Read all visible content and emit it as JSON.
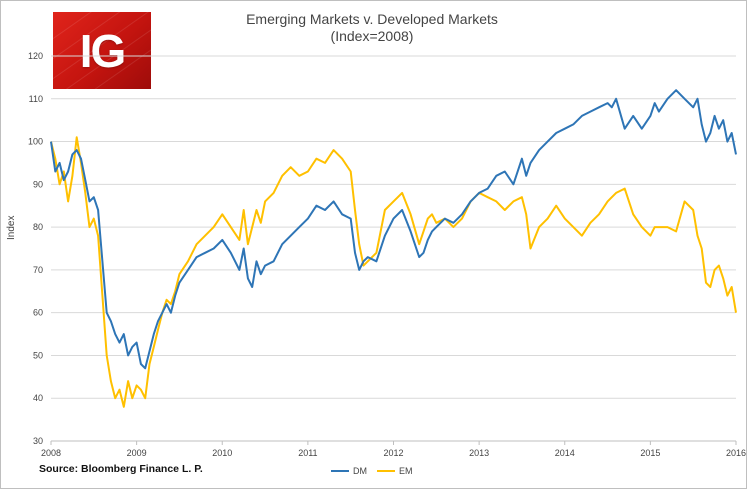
{
  "logo": {
    "text": "IG"
  },
  "colors": {
    "dm": "#2e75b6",
    "em": "#ffc000",
    "grid": "#d9d9d9",
    "axis": "#bfbfbf"
  },
  "source_text": "Source: Bloomberg Finance L. P.",
  "chart_data": {
    "type": "line",
    "title": "Emerging Markets v. Developed Markets",
    "subtitle": "(Index=2008)",
    "xlabel": "",
    "ylabel": "Index",
    "xlim": [
      2008,
      2016
    ],
    "ylim": [
      30,
      120
    ],
    "y_ticks": [
      30,
      40,
      50,
      60,
      70,
      80,
      90,
      100,
      110,
      120
    ],
    "x_ticks": [
      2008,
      2009,
      2010,
      2011,
      2012,
      2013,
      2014,
      2015,
      2016
    ],
    "grid": true,
    "legend_position": "bottom",
    "series": [
      {
        "name": "DM",
        "x": [
          2008.0,
          2008.05,
          2008.1,
          2008.15,
          2008.2,
          2008.25,
          2008.3,
          2008.35,
          2008.4,
          2008.45,
          2008.5,
          2008.55,
          2008.6,
          2008.65,
          2008.7,
          2008.75,
          2008.8,
          2008.85,
          2008.9,
          2008.95,
          2009.0,
          2009.05,
          2009.1,
          2009.15,
          2009.2,
          2009.25,
          2009.3,
          2009.35,
          2009.4,
          2009.45,
          2009.5,
          2009.6,
          2009.7,
          2009.8,
          2009.9,
          2010.0,
          2010.1,
          2010.2,
          2010.25,
          2010.3,
          2010.35,
          2010.4,
          2010.45,
          2010.5,
          2010.6,
          2010.7,
          2010.8,
          2010.9,
          2011.0,
          2011.1,
          2011.2,
          2011.3,
          2011.4,
          2011.5,
          2011.55,
          2011.6,
          2011.65,
          2011.7,
          2011.8,
          2011.9,
          2012.0,
          2012.1,
          2012.2,
          2012.3,
          2012.35,
          2012.4,
          2012.45,
          2012.5,
          2012.6,
          2012.7,
          2012.8,
          2012.9,
          2013.0,
          2013.1,
          2013.2,
          2013.3,
          2013.4,
          2013.5,
          2013.55,
          2013.6,
          2013.7,
          2013.8,
          2013.9,
          2014.0,
          2014.1,
          2014.2,
          2014.3,
          2014.4,
          2014.5,
          2014.55,
          2014.6,
          2014.7,
          2014.8,
          2014.9,
          2015.0,
          2015.05,
          2015.1,
          2015.2,
          2015.3,
          2015.4,
          2015.5,
          2015.55,
          2015.6,
          2015.65,
          2015.7,
          2015.75,
          2015.8,
          2015.85,
          2015.9,
          2015.95,
          2016.0
        ],
        "values": [
          100,
          93,
          95,
          91,
          93,
          97,
          98,
          96,
          91,
          86,
          87,
          84,
          72,
          60,
          58,
          55,
          53,
          55,
          50,
          52,
          53,
          48,
          47,
          51,
          55,
          58,
          60,
          62,
          60,
          64,
          67,
          70,
          73,
          74,
          75,
          77,
          74,
          70,
          75,
          68,
          66,
          72,
          69,
          71,
          72,
          76,
          78,
          80,
          82,
          85,
          84,
          86,
          83,
          82,
          74,
          70,
          72,
          73,
          72,
          78,
          82,
          84,
          79,
          73,
          74,
          77,
          79,
          80,
          82,
          81,
          83,
          86,
          88,
          89,
          92,
          93,
          90,
          96,
          92,
          95,
          98,
          100,
          102,
          103,
          104,
          106,
          107,
          108,
          109,
          108,
          110,
          103,
          106,
          103,
          106,
          109,
          107,
          110,
          112,
          110,
          108,
          110,
          104,
          100,
          102,
          106,
          103,
          105,
          100,
          102,
          97
        ]
      },
      {
        "name": "EM",
        "x": [
          2008.0,
          2008.05,
          2008.1,
          2008.15,
          2008.2,
          2008.25,
          2008.3,
          2008.35,
          2008.4,
          2008.45,
          2008.5,
          2008.55,
          2008.6,
          2008.65,
          2008.7,
          2008.75,
          2008.8,
          2008.85,
          2008.9,
          2008.95,
          2009.0,
          2009.05,
          2009.1,
          2009.15,
          2009.2,
          2009.25,
          2009.3,
          2009.35,
          2009.4,
          2009.45,
          2009.5,
          2009.6,
          2009.7,
          2009.8,
          2009.9,
          2010.0,
          2010.1,
          2010.2,
          2010.25,
          2010.3,
          2010.35,
          2010.4,
          2010.45,
          2010.5,
          2010.6,
          2010.7,
          2010.8,
          2010.9,
          2011.0,
          2011.1,
          2011.2,
          2011.3,
          2011.4,
          2011.5,
          2011.55,
          2011.6,
          2011.65,
          2011.7,
          2011.8,
          2011.9,
          2012.0,
          2012.1,
          2012.2,
          2012.3,
          2012.35,
          2012.4,
          2012.45,
          2012.5,
          2012.6,
          2012.7,
          2012.8,
          2012.9,
          2013.0,
          2013.1,
          2013.2,
          2013.3,
          2013.4,
          2013.5,
          2013.55,
          2013.6,
          2013.7,
          2013.8,
          2013.9,
          2014.0,
          2014.1,
          2014.2,
          2014.3,
          2014.4,
          2014.5,
          2014.55,
          2014.6,
          2014.7,
          2014.8,
          2014.9,
          2015.0,
          2015.05,
          2015.1,
          2015.2,
          2015.3,
          2015.4,
          2015.5,
          2015.55,
          2015.6,
          2015.65,
          2015.7,
          2015.75,
          2015.8,
          2015.85,
          2015.9,
          2015.95,
          2016.0
        ],
        "values": [
          100,
          96,
          90,
          93,
          86,
          92,
          101,
          95,
          88,
          80,
          82,
          78,
          64,
          50,
          44,
          40,
          42,
          38,
          44,
          40,
          43,
          42,
          40,
          48,
          52,
          56,
          60,
          63,
          62,
          65,
          69,
          72,
          76,
          78,
          80,
          83,
          80,
          77,
          84,
          76,
          80,
          84,
          81,
          86,
          88,
          92,
          94,
          92,
          93,
          96,
          95,
          98,
          96,
          93,
          84,
          76,
          71,
          72,
          74,
          84,
          86,
          88,
          83,
          76,
          79,
          82,
          83,
          81,
          82,
          80,
          82,
          86,
          88,
          87,
          86,
          84,
          86,
          87,
          83,
          75,
          80,
          82,
          85,
          82,
          80,
          78,
          81,
          83,
          86,
          87,
          88,
          89,
          83,
          80,
          78,
          80,
          80,
          80,
          79,
          86,
          84,
          78,
          75,
          67,
          66,
          70,
          71,
          68,
          64,
          66,
          60
        ]
      }
    ]
  }
}
